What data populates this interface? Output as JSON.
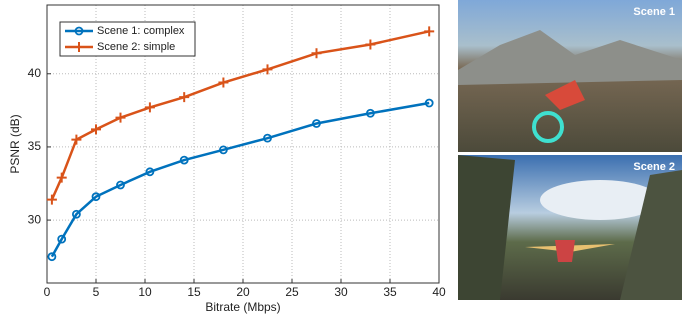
{
  "chart_data": {
    "type": "line",
    "x_label": "Bitrate (Mbps)",
    "y_label": "PSNR (dB)",
    "xlim": [
      0,
      40
    ],
    "xticks": [
      0,
      5,
      10,
      15,
      20,
      25,
      30,
      35,
      40
    ],
    "ylim": [
      25.7,
      44.7
    ],
    "yticks": [
      30,
      35,
      40
    ],
    "grid": true,
    "legend": "upper left",
    "series": [
      {
        "name": "Scene 1: complex",
        "color": "#0072bd",
        "marker": "circle",
        "x": [
          0.5,
          1.5,
          3,
          5,
          7.5,
          10.5,
          14,
          18,
          22.5,
          27.5,
          33,
          39
        ],
        "values": [
          27.5,
          28.7,
          30.4,
          31.6,
          32.4,
          33.3,
          34.1,
          34.8,
          35.6,
          36.6,
          37.3,
          38.0
        ]
      },
      {
        "name": "Scene 2: simple",
        "color": "#d95319",
        "marker": "plus",
        "x": [
          0.5,
          1.5,
          3,
          5,
          7.5,
          10.5,
          14,
          18,
          22.5,
          27.5,
          33,
          39
        ],
        "values": [
          31.4,
          32.9,
          35.5,
          36.2,
          37.0,
          37.7,
          38.4,
          39.4,
          40.3,
          41.4,
          42.0,
          42.9
        ]
      }
    ]
  },
  "images": [
    {
      "label": "Scene 1"
    },
    {
      "label": "Scene 2"
    }
  ]
}
